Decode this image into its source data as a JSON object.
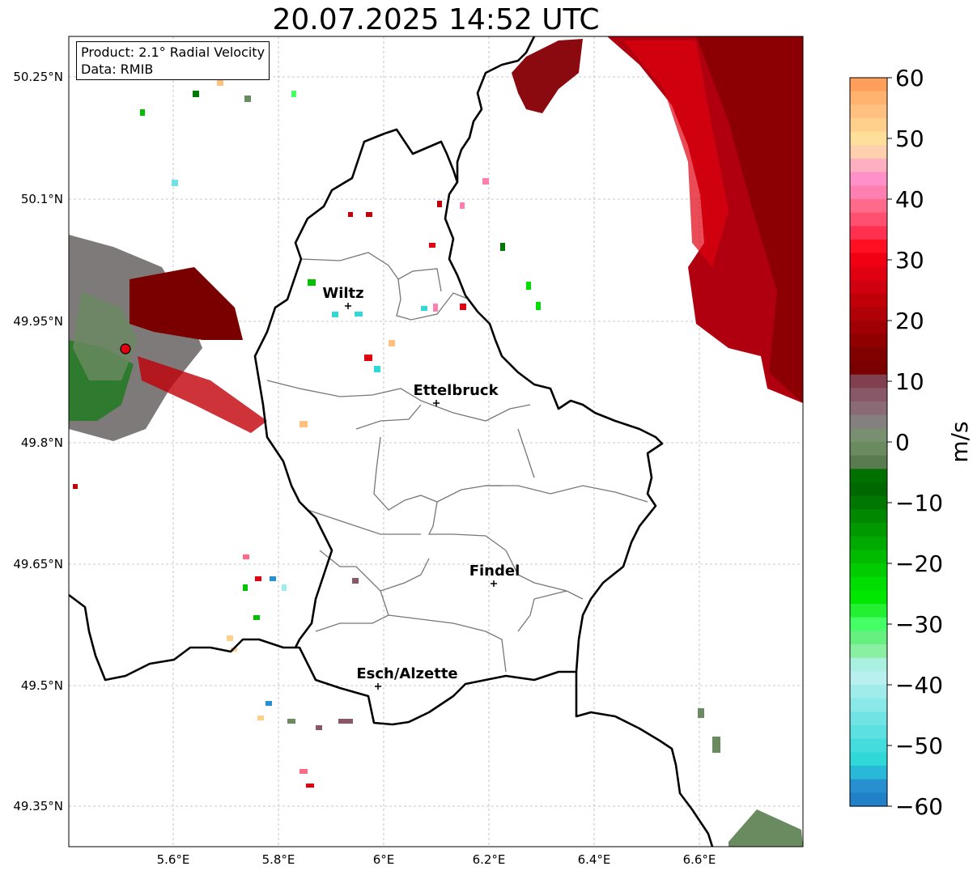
{
  "title": "20.07.2025 14:52 UTC",
  "info": {
    "product": "Product: 2.1° Radial Velocity",
    "data": "Data: RMIB"
  },
  "lat_labels": [
    "50.25°N",
    "50.1°N",
    "49.95°N",
    "49.8°N",
    "49.65°N",
    "49.5°N",
    "49.35°N"
  ],
  "lon_labels": [
    "5.6°E",
    "5.8°E",
    "6°E",
    "6.2°E",
    "6.4°E",
    "6.6°E"
  ],
  "cities": [
    {
      "name": "Wiltz",
      "lon": 5.93,
      "lat": 49.966
    },
    {
      "name": "Ettelbruck",
      "lon": 6.1,
      "lat": 49.85
    },
    {
      "name": "Findel",
      "lon": 6.21,
      "lat": 49.626
    },
    {
      "name": "Esch/Alzette",
      "lon": 5.99,
      "lat": 49.5
    }
  ],
  "radar_site": {
    "lon": 5.505,
    "lat": 49.915
  },
  "colorbar": {
    "unit": "m/s",
    "ticks": [
      "60",
      "50",
      "40",
      "30",
      "20",
      "10",
      "0",
      "−10",
      "−20",
      "−30",
      "−40",
      "−50",
      "−60"
    ],
    "min": -60,
    "max": 60,
    "colors_top_to_bottom": [
      "#ff9f5a",
      "#ffb36e",
      "#ffc080",
      "#ffd08c",
      "#ffe09a",
      "#ffd0b0",
      "#ffb0c0",
      "#ff90c8",
      "#ff80b0",
      "#ff6a8a",
      "#ff5070",
      "#ff3050",
      "#ff1020",
      "#f00010",
      "#e00010",
      "#d00010",
      "#c00008",
      "#b00008",
      "#a00005",
      "#900000",
      "#800000",
      "#7a0000",
      "#804050",
      "#885868",
      "#8a6a74",
      "#848080",
      "#789070",
      "#6a8a60",
      "#5a7a50",
      "#007000",
      "#006800",
      "#007800",
      "#008800",
      "#009a00",
      "#00aa00",
      "#00bb00",
      "#00cc00",
      "#00dd00",
      "#00e800",
      "#22f030",
      "#44ff66",
      "#66f080",
      "#88f0a0",
      "#aaf0e0",
      "#b8f0f0",
      "#a0ecec",
      "#8ae8e8",
      "#70e4e4",
      "#5ce0e0",
      "#44dcdc",
      "#30d8d8",
      "#28b8d8",
      "#2890d0",
      "#2080c8"
    ]
  }
}
